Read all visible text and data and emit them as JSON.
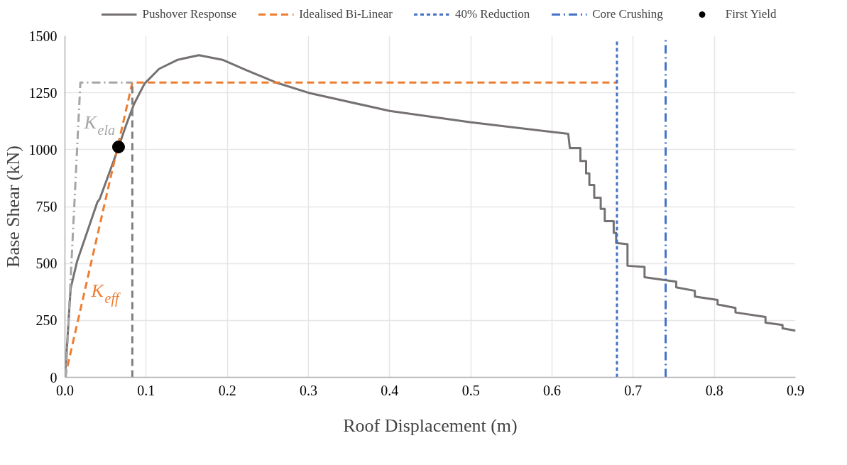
{
  "chart_data": {
    "type": "line",
    "xlabel": "Roof Displacement (m)",
    "ylabel": "Base Shear (kN)",
    "xlim": [
      0,
      0.9
    ],
    "xticks": [
      {
        "value": 0,
        "label": "0.0"
      },
      0.1,
      0.2,
      0.3,
      0.4,
      0.5,
      0.6,
      0.7,
      0.8,
      0.9
    ],
    "ylim": [
      0,
      1500
    ],
    "yticks": [
      0,
      250,
      500,
      750,
      1000,
      1250,
      1500
    ],
    "grid": true,
    "legend": "top",
    "series": [
      {
        "name": "Pushover Response",
        "color": "#767171",
        "line_style": "solid",
        "x": [
          0,
          0.007,
          0.015,
          0.04,
          0.043,
          0.063,
          0.075,
          0.085,
          0.098,
          0.116,
          0.139,
          0.165,
          0.194,
          0.223,
          0.26,
          0.3,
          0.4,
          0.5,
          0.62,
          0.622,
          0.635,
          0.635,
          0.642,
          0.642,
          0.646,
          0.646,
          0.652,
          0.652,
          0.66,
          0.66,
          0.665,
          0.665,
          0.676,
          0.676,
          0.679,
          0.679,
          0.693,
          0.693,
          0.714,
          0.714,
          0.753,
          0.753,
          0.776,
          0.776,
          0.804,
          0.804,
          0.826,
          0.826,
          0.863,
          0.863,
          0.884,
          0.884,
          0.9
        ],
        "values": [
          0,
          390,
          510,
          770,
          785,
          980,
          1105,
          1200,
          1290,
          1355,
          1395,
          1415,
          1395,
          1350,
          1295,
          1250,
          1170,
          1120,
          1070,
          1007,
          1007,
          950,
          950,
          896,
          896,
          845,
          845,
          789,
          789,
          740,
          740,
          686,
          686,
          635,
          635,
          590,
          585,
          490,
          485,
          440,
          420,
          395,
          380,
          355,
          340,
          320,
          305,
          285,
          265,
          240,
          230,
          215,
          205
        ]
      },
      {
        "name": "Idealised Bi-Linear",
        "color": "#ed7d31",
        "line_style": "dashed",
        "x": [
          0,
          0.083,
          0.68
        ],
        "values": [
          0,
          1295,
          1295
        ]
      },
      {
        "name": "40% Reduction",
        "color": "#4472c4",
        "line_style": "dotted",
        "x": [
          0.68,
          0.68
        ],
        "values": [
          0,
          1485
        ]
      },
      {
        "name": "Core Crushing",
        "color": "#4472c4",
        "line_style": "dashdot",
        "x": [
          0.74,
          0.74
        ],
        "values": [
          0,
          1485
        ]
      },
      {
        "name": "First Yield",
        "color": "#000000",
        "type": "scatter",
        "marker": "circle",
        "x": [
          0.066
        ],
        "values": [
          1012
        ]
      },
      {
        "color": "#a5a5a5",
        "line_style": "dashdot",
        "x": [
          0.001,
          0.019,
          0.083
        ],
        "values": [
          0,
          1295,
          1295
        ]
      },
      {
        "color": "#7f7f7f",
        "line_style": "dashed",
        "x": [
          0.083,
          0.083
        ],
        "values": [
          0,
          1295
        ]
      }
    ],
    "annotations": [
      "K$_{ela}$",
      "K$_{eff}$"
    ]
  }
}
